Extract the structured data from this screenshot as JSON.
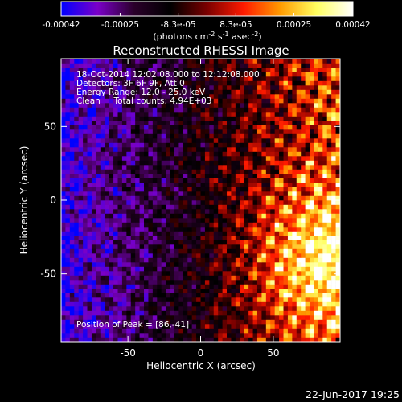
{
  "chart_data": {
    "type": "heatmap",
    "title": "Reconstructed RHESSI Image",
    "colorbar": {
      "ticks": [
        "-0.00042",
        "-0.00025",
        "-8.3e-05",
        "8.3e-05",
        "0.00025",
        "0.00042"
      ],
      "tick_values": [
        -0.00042,
        -0.00025,
        -8.3e-05,
        8.3e-05,
        0.00025,
        0.00042
      ],
      "range": [
        -0.00042,
        0.00042
      ],
      "unit_parts": {
        "main": "(photons cm",
        "exp1": "-2",
        "mid1": " s",
        "exp2": "-1",
        "mid2": " asec",
        "exp3": "-2",
        "tail": ")"
      },
      "colormap": [
        "#0000ff",
        "#7a00c8",
        "#2a002a",
        "#000000",
        "#7a0000",
        "#ff1a00",
        "#ff9a00",
        "#ffff60",
        "#ffffff"
      ]
    },
    "annotations": [
      "18-Oct-2014 12:02:08.000 to 12:12:08.000",
      "Detectors: 3F 6F 9F, Att 0",
      "Energy Range: 12.0 - 25.0 keV",
      "Clean     Total counts: 4.94E+03"
    ],
    "peak_label": "Position of Peak = [86,-41]",
    "peak": [
      86,
      -41
    ],
    "xlabel": "Heliocentric X (arcsec)",
    "ylabel": "Heliocentric Y (arcsec)",
    "xlim": [
      -96,
      96
    ],
    "ylim": [
      -96,
      96
    ],
    "xticks": [
      -50,
      0,
      50
    ],
    "yticks": [
      -50,
      0,
      50
    ],
    "grid": false,
    "pixel_size_arcsec": 3,
    "image_description_values": "noise-like CLEAN residual map; negative (blue/purple) dominant at X<0, positive (red/yellow) emission strongest at X>40, Y<0"
  },
  "footer_timestamp": "22-Jun-2017 19:25"
}
